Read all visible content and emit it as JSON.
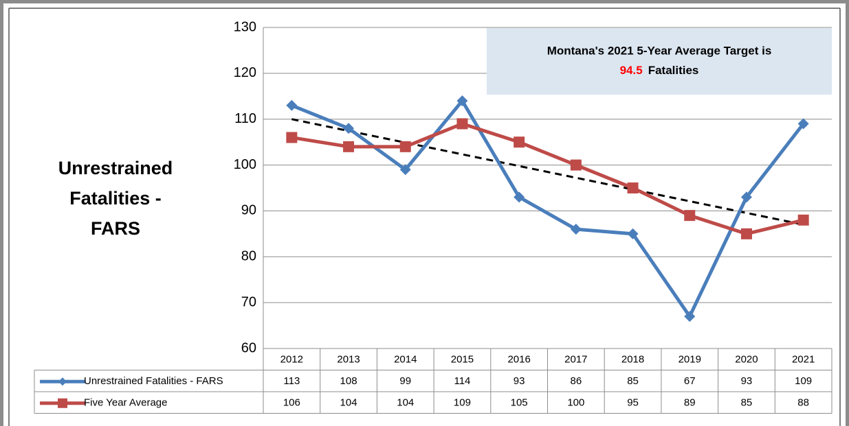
{
  "chart_data": {
    "type": "line",
    "title_lines": [
      "Unrestrained",
      "Fatalities -",
      "FARS"
    ],
    "annotation": {
      "text": "Montana's 2021 5-Year Average Target is",
      "value": 94.5,
      "suffix": "Fatalities",
      "value_color": "#ff0000"
    },
    "categories": [
      "2012",
      "2013",
      "2014",
      "2015",
      "2016",
      "2017",
      "2018",
      "2019",
      "2020",
      "2021"
    ],
    "series": [
      {
        "name": "Unrestrained Fatalities - FARS",
        "color": "#4a7ebb",
        "marker": "diamond",
        "values": [
          113,
          108,
          99,
          114,
          93,
          86,
          85,
          67,
          93,
          109
        ]
      },
      {
        "name": "Five Year Average",
        "color": "#be4b48",
        "marker": "square",
        "values": [
          106,
          104,
          104,
          109,
          105,
          100,
          95,
          89,
          85,
          88
        ]
      }
    ],
    "trendline": [
      110,
      87
    ],
    "ylim": [
      60,
      130
    ],
    "yticks": [
      60,
      70,
      80,
      90,
      100,
      110,
      120,
      130
    ],
    "grid": true
  }
}
